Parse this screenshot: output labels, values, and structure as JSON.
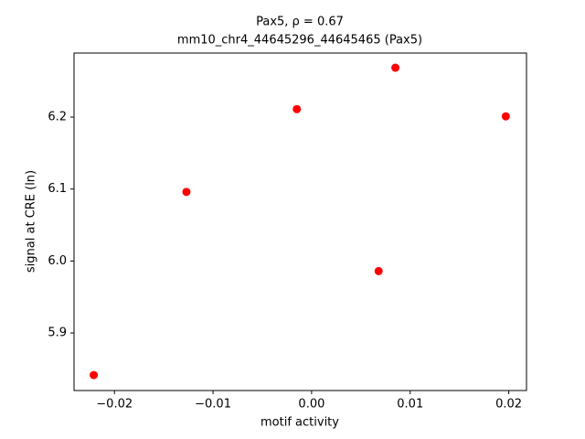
{
  "chart_data": {
    "type": "scatter",
    "title": [
      "Pax5, ρ = 0.67",
      "mm10_chr4_44645296_44645465 (Pax5)"
    ],
    "xlabel": "motif activity",
    "ylabel": "signal at CRE (ln)",
    "series": [
      {
        "color": "#ff0000",
        "x": [
          -0.0221,
          -0.0127,
          -0.0015,
          0.0068,
          0.0085,
          0.0197
        ],
        "values": [
          5.8415,
          6.096,
          6.211,
          5.986,
          6.2686,
          6.201
        ]
      }
    ],
    "xlim": [
      -0.0241,
      0.0218
    ],
    "ylim": [
      5.82,
      6.289
    ],
    "xticks": [
      {
        "value": -0.02,
        "label": "−0.02"
      },
      {
        "value": -0.01,
        "label": "−0.01"
      },
      {
        "value": 0,
        "label": "0.00"
      },
      0.01,
      0.02
    ],
    "yticks": [
      5.9,
      {
        "value": 6.0,
        "label": "6.0"
      },
      6.1,
      6.2
    ],
    "grid": false
  }
}
